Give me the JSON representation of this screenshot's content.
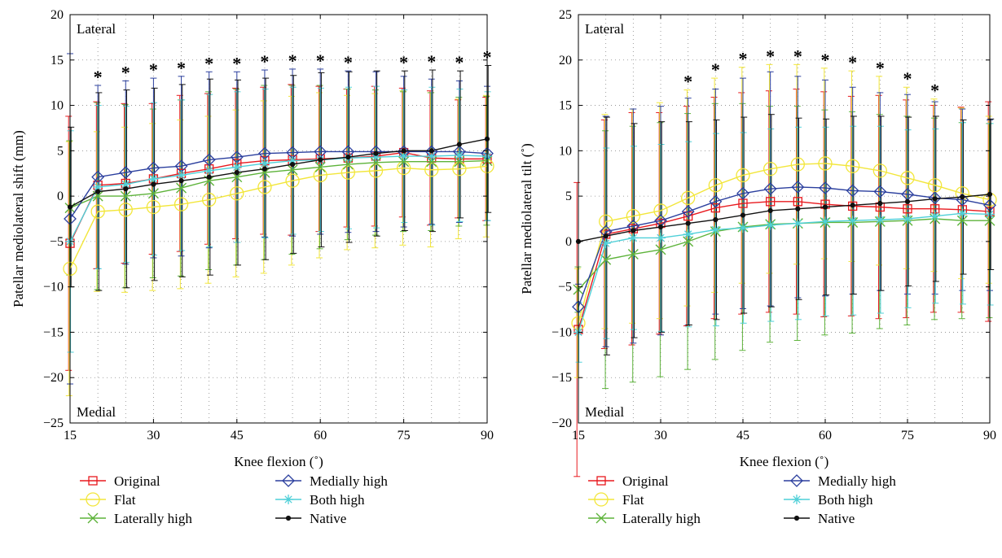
{
  "colors": {
    "Original": "#e8191e",
    "Flat": "#f2e63a",
    "Laterally high": "#5db33a",
    "Medially high": "#2b3f9e",
    "Both high": "#4fd0d8",
    "Native": "#111111"
  },
  "markers": {
    "Original": "square",
    "Flat": "circle",
    "Laterally high": "x",
    "Medially high": "diamond",
    "Both high": "asterisk",
    "Native": "dot"
  },
  "legend": [
    "Original",
    "Flat",
    "Laterally high",
    "Medially high",
    "Both high",
    "Native"
  ],
  "chart_data": [
    {
      "type": "line",
      "title": "",
      "xlabel": "Knee flexion (˚)",
      "ylabel": "Patellar mediolateral shift (mm)",
      "xlim": [
        15,
        90
      ],
      "ylim": [
        -25,
        20
      ],
      "xticks": [
        15,
        30,
        45,
        60,
        75,
        90
      ],
      "yticks": [
        -25,
        -20,
        -15,
        -10,
        -5,
        0,
        5,
        10,
        15,
        20
      ],
      "grid": true,
      "annotations": {
        "top": "Lateral",
        "bottom": "Medial"
      },
      "x": [
        15,
        20,
        25,
        30,
        35,
        40,
        45,
        50,
        55,
        60,
        65,
        70,
        75,
        80,
        85,
        90
      ],
      "significance_marker": "*",
      "significance_x": [
        20,
        25,
        30,
        35,
        40,
        45,
        50,
        55,
        60,
        65,
        75,
        80,
        85,
        90
      ],
      "series": [
        {
          "name": "Original",
          "values": [
            -5.2,
            1.2,
            1.4,
            1.9,
            2.5,
            3.0,
            3.6,
            3.9,
            4.0,
            4.1,
            4.2,
            4.4,
            4.8,
            4.2,
            4.1,
            4.1
          ],
          "sd": [
            14.0,
            9.2,
            8.8,
            8.3,
            8.6,
            8.3,
            8.3,
            8.1,
            8.3,
            8.0,
            7.6,
            7.7,
            7.1,
            7.4,
            6.5,
            6.8
          ]
        },
        {
          "name": "Flat",
          "values": [
            -8.0,
            -1.7,
            -1.5,
            -1.2,
            -0.9,
            -0.4,
            0.3,
            1.0,
            1.7,
            2.3,
            2.6,
            2.8,
            3.1,
            2.9,
            3.0,
            3.3
          ],
          "sd": [
            14.0,
            8.8,
            9.1,
            9.2,
            9.3,
            9.2,
            9.2,
            9.5,
            9.3,
            9.1,
            8.5,
            8.5,
            8.5,
            8.5,
            7.7,
            7.8
          ]
        },
        {
          "name": "Laterally high",
          "values": [
            -1.3,
            0.0,
            0.0,
            0.3,
            0.9,
            1.7,
            2.1,
            2.6,
            2.9,
            3.2,
            3.5,
            3.7,
            3.8,
            3.8,
            3.8,
            3.9
          ],
          "sd": [
            7.4,
            10.3,
            10.1,
            9.3,
            9.7,
            9.8,
            9.7,
            9.6,
            9.3,
            9.0,
            8.3,
            8.0,
            7.7,
            7.6,
            7.1,
            7.1
          ]
        },
        {
          "name": "Medially high",
          "values": [
            -2.5,
            2.1,
            2.6,
            3.1,
            3.3,
            4.0,
            4.3,
            4.7,
            4.8,
            4.9,
            4.9,
            4.9,
            4.9,
            4.9,
            4.9,
            4.7
          ],
          "sd": [
            18.2,
            10.1,
            10.1,
            9.9,
            9.9,
            9.7,
            9.4,
            9.2,
            9.2,
            9.1,
            8.9,
            8.8,
            8.3,
            8.0,
            7.8,
            7.4
          ]
        },
        {
          "name": "Both high",
          "values": [
            -5.0,
            1.0,
            1.3,
            1.9,
            2.3,
            2.8,
            3.2,
            3.6,
            3.9,
            4.0,
            4.2,
            4.3,
            4.4,
            4.4,
            4.5,
            4.4
          ],
          "sd": [
            12.2,
            9.0,
            8.6,
            8.4,
            8.3,
            8.4,
            8.3,
            8.2,
            8.1,
            7.9,
            7.8,
            7.8,
            7.3,
            7.6,
            7.3,
            7.1
          ]
        },
        {
          "name": "Native",
          "values": [
            -1.2,
            0.5,
            0.8,
            1.3,
            1.7,
            2.1,
            2.6,
            3.0,
            3.5,
            4.0,
            4.3,
            4.7,
            5.0,
            5.0,
            5.7,
            6.3
          ],
          "sd": [
            8.8,
            10.9,
            10.9,
            10.6,
            10.6,
            10.8,
            10.2,
            10.0,
            9.8,
            9.6,
            9.4,
            9.1,
            8.8,
            8.9,
            8.1,
            8.1
          ]
        }
      ]
    },
    {
      "type": "line",
      "title": "",
      "xlabel": "Knee flexion (˚)",
      "ylabel": "Patellar mediolateral tilt (˚)",
      "xlim": [
        15,
        90
      ],
      "ylim": [
        -20,
        25
      ],
      "xticks": [
        15,
        30,
        45,
        60,
        75,
        90
      ],
      "yticks": [
        -20,
        -15,
        -10,
        -5,
        0,
        5,
        10,
        15,
        20,
        25
      ],
      "grid": true,
      "annotations": {
        "top": "Lateral",
        "bottom": "Medial"
      },
      "x": [
        15,
        20,
        25,
        30,
        35,
        40,
        45,
        50,
        55,
        60,
        65,
        70,
        75,
        80,
        85,
        90
      ],
      "significance_marker": "*",
      "significance_x": [
        35,
        40,
        45,
        50,
        55,
        60,
        65,
        70,
        75,
        80
      ],
      "series": [
        {
          "name": "Original",
          "values": [
            -9.7,
            0.8,
            1.4,
            2.0,
            2.8,
            3.7,
            4.2,
            4.4,
            4.4,
            4.1,
            3.9,
            3.8,
            3.6,
            3.6,
            3.5,
            3.3
          ],
          "sd": [
            16.2,
            12.6,
            12.8,
            12.2,
            12.1,
            12.2,
            12.2,
            12.2,
            12.4,
            12.4,
            12.1,
            12.3,
            12.0,
            11.4,
            11.3,
            12.1
          ]
        },
        {
          "name": "Flat",
          "values": [
            -9.0,
            2.2,
            2.8,
            3.4,
            4.8,
            6.2,
            7.3,
            8.0,
            8.5,
            8.6,
            8.3,
            7.8,
            7.0,
            6.2,
            5.3,
            4.6
          ],
          "sd": [
            6.0,
            11.8,
            11.8,
            11.9,
            11.9,
            11.8,
            11.9,
            11.5,
            11.0,
            10.5,
            10.5,
            10.4,
            10.0,
            9.5,
            9.4,
            9.2
          ]
        },
        {
          "name": "Laterally high",
          "values": [
            -5.3,
            -2.0,
            -1.4,
            -0.9,
            0.0,
            1.1,
            1.6,
            1.9,
            2.0,
            2.1,
            2.1,
            2.2,
            2.3,
            2.5,
            2.3,
            2.3
          ],
          "sd": [
            2.5,
            14.2,
            14.1,
            14.0,
            14.1,
            14.1,
            13.6,
            13.0,
            12.9,
            12.4,
            12.2,
            11.8,
            11.5,
            11.1,
            10.8,
            10.7
          ]
        },
        {
          "name": "Medially high",
          "values": [
            -7.2,
            1.1,
            1.7,
            2.3,
            3.3,
            4.4,
            5.3,
            5.8,
            6.0,
            5.9,
            5.6,
            5.5,
            5.2,
            4.8,
            4.6,
            4.0
          ],
          "sd": [
            2.5,
            12.7,
            12.9,
            12.6,
            12.5,
            12.4,
            12.7,
            12.9,
            12.2,
            11.9,
            11.4,
            10.9,
            11.0,
            10.6,
            10.0,
            9.4
          ]
        },
        {
          "name": "Both high",
          "values": [
            -10.0,
            -0.2,
            0.4,
            0.4,
            0.8,
            1.3,
            1.5,
            1.8,
            2.0,
            2.2,
            2.3,
            2.4,
            2.5,
            2.8,
            3.1,
            3.0
          ],
          "sd": [
            3.3,
            10.5,
            10.1,
            10.3,
            10.2,
            10.6,
            10.5,
            10.6,
            10.6,
            10.4,
            10.4,
            10.3,
            9.8,
            9.6,
            10.0,
            10.0
          ]
        },
        {
          "name": "Native",
          "values": [
            0.0,
            0.6,
            1.2,
            1.6,
            2.0,
            2.4,
            2.9,
            3.4,
            3.6,
            3.8,
            4.0,
            4.2,
            4.4,
            4.7,
            4.9,
            5.2
          ],
          "sd": [
            0.0,
            13.1,
            11.8,
            11.6,
            11.2,
            11.0,
            10.8,
            10.6,
            10.0,
            9.7,
            9.8,
            9.6,
            9.3,
            9.1,
            8.5,
            8.3
          ]
        }
      ]
    }
  ]
}
